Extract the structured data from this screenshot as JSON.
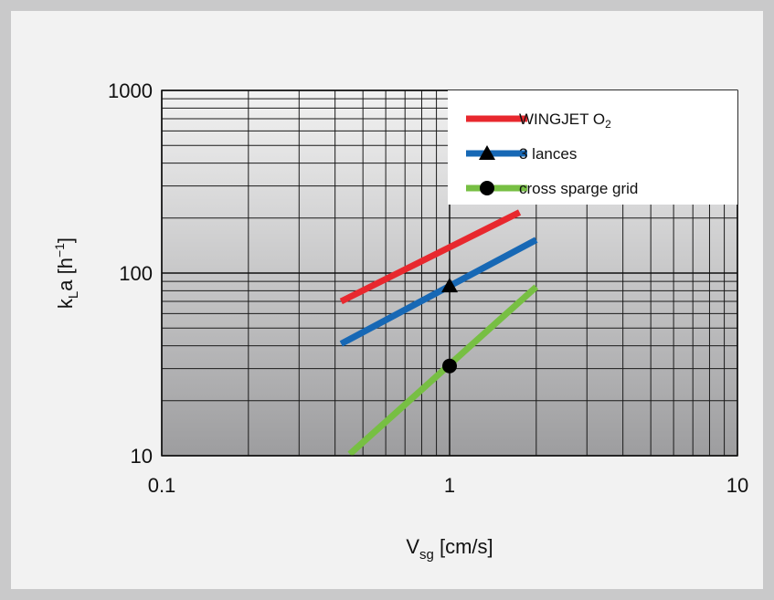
{
  "chart_data": {
    "type": "line",
    "x_scale": "log",
    "y_scale": "log",
    "xlim": [
      0.1,
      10
    ],
    "ylim": [
      10,
      1000
    ],
    "x_ticks": [
      "0.1",
      "1",
      "10"
    ],
    "y_ticks": [
      "10",
      "100",
      "1000"
    ],
    "xlabel": {
      "main": "V",
      "sub": "sg",
      "rest": " [cm/s]"
    },
    "ylabel": {
      "main": "k",
      "sub": "L",
      "rest": "a [h",
      "sup": "−1",
      "close": "]"
    },
    "grid": true,
    "legend_position": "top-right",
    "series": [
      {
        "name": "WINGJET O",
        "name_sub": "2",
        "color": "#e8282e",
        "marker": "none",
        "x": [
          0.42,
          1.75
        ],
        "y": [
          70,
          215
        ]
      },
      {
        "name": "3 lances",
        "color": "#1768b5",
        "marker": "triangle",
        "x": [
          0.42,
          2.0
        ],
        "y": [
          41,
          152
        ],
        "marker_point": {
          "x": 1.0,
          "y": 85
        }
      },
      {
        "name": "cross sparge grid",
        "color": "#77bf43",
        "marker": "circle",
        "x": [
          0.45,
          2.0
        ],
        "y": [
          10.2,
          84
        ],
        "marker_point": {
          "x": 1.0,
          "y": 31
        }
      }
    ]
  }
}
